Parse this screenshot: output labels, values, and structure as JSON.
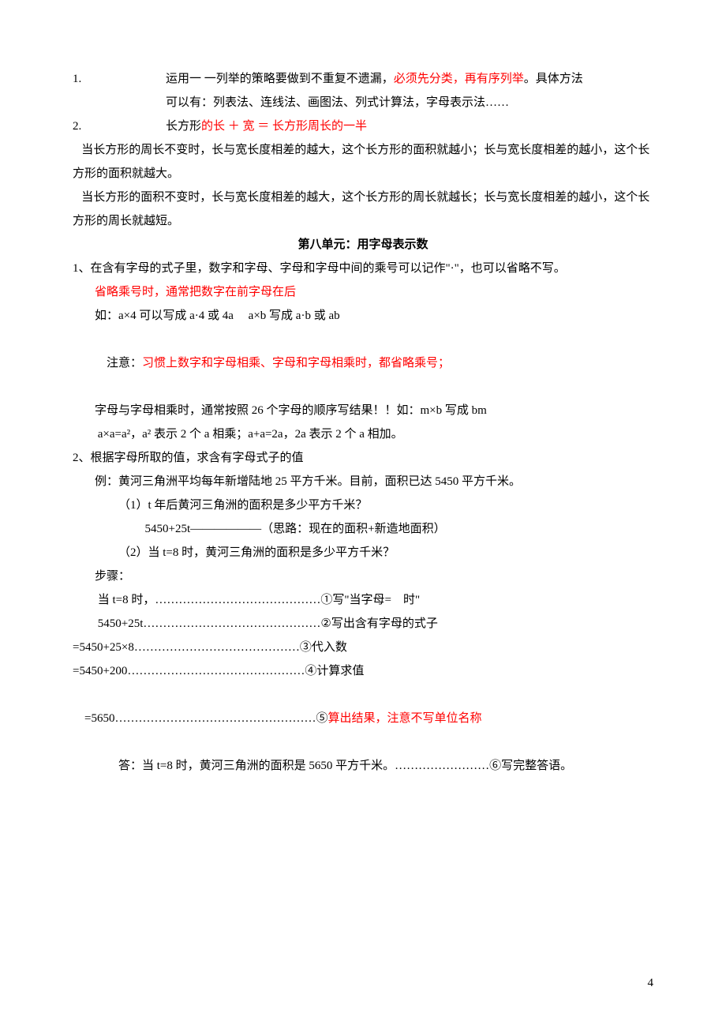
{
  "colors": {
    "text": "#000000",
    "highlight": "#ff0000",
    "background": "#ffffff"
  },
  "typography": {
    "font_family": "SimSun",
    "font_size_pt": 11,
    "line_height": 2.0
  },
  "page_number": "4",
  "item1": {
    "num": "1.",
    "pre": "运用一  一列举的策略要做到不重复不遗漏，",
    "red": "必须先分类，再有序列举",
    "post": "。具体方法"
  },
  "item1_cont": "可以有：列表法、连线法、画图法、列式计算法，字母表示法……",
  "item2": {
    "num": "2.",
    "pre": "长方形",
    "red": "的长  ＋  宽  ＝  长方形周长的一半"
  },
  "p2a": "   当长方形的周长不变时，长与宽长度相差的越大，这个长方形的面积就越小；长与宽长度相差的越小，这个长方形的面积就越大。",
  "p2b": "   当长方形的面积不变时，长与宽长度相差的越大，这个长方形的周长就越长；长与宽长度相差的越小，这个长方形的周长就越短。",
  "unit_title": "第八单元：用字母表示数",
  "s1_l1": "1、在含有字母的式子里，数字和字母、字母和字母中间的乘号可以记作\"·\"，也可以省略不写。",
  "s1_red1": "省略乘号时，通常把数字在前字母在后",
  "s1_l2": "如：a×4 可以写成 a·4 或 4a     a×b 写成 a·b 或 ab",
  "s1_note_pre": "注意：",
  "s1_note_red": "习惯上数字和字母相乘、字母和字母相乘时，都省略乘号；",
  "s1_l3": "字母与字母相乘时，通常按照 26 个字母的顺序写结果！！如：m×b 写成 bm",
  "s1_l4": " a×a=a²，a² 表示 2 个 a 相乘；a+a=2a，2a 表示 2 个 a 相加。",
  "s2_l1": "2、根据字母所取的值，求含有字母式子的值",
  "s2_ex": "例：黄河三角洲平均每年新增陆地 25 平方千米。目前，面积已达 5450 平方千米。",
  "s2_q1": "（1）t 年后黄河三角洲的面积是多少平方千米？",
  "s2_q1a": "  5450+25t——————（思路：现在的面积+新造地面积）",
  "s2_q2": "（2）当 t=8 时，黄河三角洲的面积是多少平方千米？",
  "s2_steps": "步骤：",
  "s2_st1": " 当 t=8 时，……………………………………①写\"当字母=    时\"",
  "s2_st2": " 5450+25t………………………………………②写出含有字母的式子",
  "s2_st3": "=5450+25×8……………………………………③代入数",
  "s2_st4": "=5450+200………………………………………④计算求值",
  "s2_st5_pre": "=5650……………………………………………⑤",
  "s2_st5_red": "算出结果，注意不写单位名称",
  "s2_ans": "答：当 t=8 时，黄河三角洲的面积是 5650 平方千米。……………………⑥写完整答语。"
}
